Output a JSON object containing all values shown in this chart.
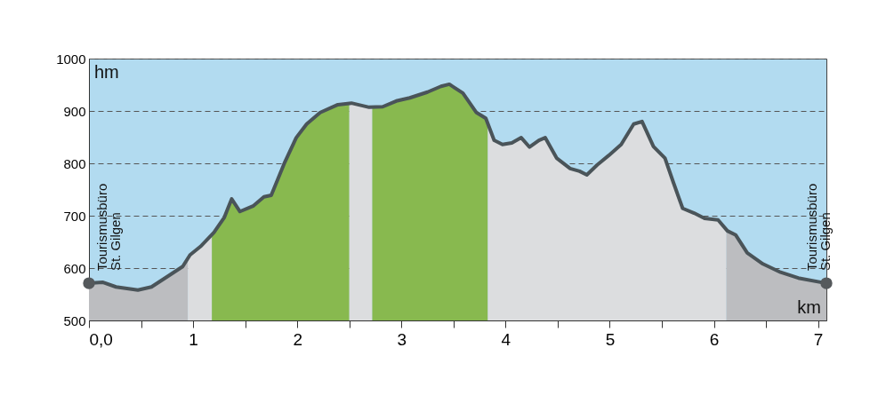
{
  "chart_data": {
    "type": "area",
    "xlabel": "km",
    "ylabel": "hm",
    "xlim": [
      0,
      7.08
    ],
    "ylim": [
      500,
      1000
    ],
    "xticks": [
      {
        "value": 0,
        "label": "0,0"
      },
      {
        "value": 0.5,
        "label": null
      },
      1,
      {
        "value": 1.5,
        "label": null
      },
      2,
      {
        "value": 2.5,
        "label": null
      },
      3,
      {
        "value": 3.5,
        "label": null
      },
      4,
      {
        "value": 4.5,
        "label": null
      },
      5,
      {
        "value": 5.5,
        "label": null
      },
      6,
      {
        "value": 6.5,
        "label": null
      },
      7
    ],
    "yticks": [
      500,
      600,
      700,
      800,
      900,
      1000
    ],
    "grid": "y",
    "series": [
      {
        "color": "#bcbdc0",
        "x": [
          0,
          0.13,
          0.26,
          0.47,
          0.6,
          0.77,
          0.9,
          0.95
        ],
        "values": [
          571,
          573,
          564,
          558,
          564,
          586,
          603,
          620
        ]
      },
      {
        "color": "#dcdddf",
        "x": [
          0.95,
          0.97,
          1.07,
          1.18
        ],
        "values": [
          620,
          625,
          641,
          665
        ]
      },
      {
        "color": "#88b94f",
        "x": [
          1.18,
          1.2,
          1.3,
          1.37,
          1.45,
          1.58,
          1.68,
          1.75,
          1.88,
          1.99,
          2.09,
          2.22,
          2.39,
          2.5
        ],
        "values": [
          665,
          668,
          697,
          732,
          708,
          719,
          736,
          739,
          802,
          849,
          875,
          897,
          912,
          915
        ]
      },
      {
        "color": "#dcdddf",
        "x": [
          2.5,
          2.52,
          2.69,
          2.72
        ],
        "values": [
          915,
          915,
          907,
          907
        ]
      },
      {
        "color": "#88b94f",
        "x": [
          2.72,
          2.82,
          2.95,
          3.08,
          3.25,
          3.38,
          3.46,
          3.59,
          3.72,
          3.81,
          3.83
        ],
        "values": [
          907,
          908,
          919,
          925,
          936,
          947,
          951,
          934,
          897,
          886,
          883
        ]
      },
      {
        "color": "#dcdddf",
        "x": [
          3.83,
          3.89,
          3.97,
          4.06,
          4.15,
          4.23,
          4.32,
          4.38,
          4.49,
          4.62,
          4.71,
          4.78,
          4.88,
          4.99,
          5.11,
          5.23,
          5.31,
          5.42,
          5.53,
          5.61,
          5.7,
          5.81,
          5.91,
          6.04,
          6.12
        ],
        "values": [
          883,
          844,
          836,
          839,
          849,
          831,
          844,
          849,
          810,
          790,
          785,
          778,
          797,
          815,
          836,
          875,
          880,
          832,
          810,
          764,
          714,
          705,
          695,
          692,
          672
        ]
      },
      {
        "color": "#bcbdc0",
        "x": [
          6.12,
          6.13,
          6.21,
          6.32,
          6.47,
          6.64,
          6.81,
          7.08
        ],
        "values": [
          672,
          671,
          663,
          629,
          608,
          592,
          581,
          571
        ]
      },
      {
        "type": "line",
        "color": "#4a5459",
        "x": [
          0,
          0.13,
          0.26,
          0.47,
          0.6,
          0.77,
          0.9,
          0.97,
          1.07,
          1.2,
          1.3,
          1.37,
          1.45,
          1.58,
          1.68,
          1.75,
          1.88,
          1.99,
          2.09,
          2.22,
          2.39,
          2.52,
          2.69,
          2.82,
          2.95,
          3.08,
          3.25,
          3.38,
          3.46,
          3.59,
          3.72,
          3.81,
          3.89,
          3.97,
          4.06,
          4.15,
          4.23,
          4.32,
          4.38,
          4.49,
          4.62,
          4.71,
          4.78,
          4.88,
          4.99,
          5.11,
          5.23,
          5.31,
          5.42,
          5.53,
          5.61,
          5.7,
          5.81,
          5.91,
          6.04,
          6.13,
          6.21,
          6.32,
          6.47,
          6.64,
          6.81,
          7.08
        ],
        "values": [
          571,
          573,
          564,
          558,
          564,
          586,
          603,
          625,
          641,
          668,
          697,
          732,
          708,
          719,
          736,
          739,
          802,
          849,
          875,
          897,
          912,
          915,
          907,
          908,
          919,
          925,
          936,
          947,
          951,
          934,
          897,
          886,
          844,
          836,
          839,
          849,
          831,
          844,
          849,
          810,
          790,
          785,
          778,
          797,
          815,
          836,
          875,
          880,
          832,
          810,
          764,
          714,
          705,
          695,
          692,
          671,
          663,
          629,
          608,
          592,
          581,
          571
        ]
      },
      {
        "type": "scatter",
        "color": "#55595c",
        "marker": "circle",
        "x": [
          0,
          7.08
        ],
        "values": [
          571,
          571
        ]
      }
    ],
    "annotations": [
      {
        "text": "Tourismusbüro\nSt. Gilgen",
        "x": 0,
        "y": 571
      },
      {
        "text": "Tourismusbüro\nSt. Gilgen",
        "x": 7.08,
        "y": 571
      }
    ]
  }
}
